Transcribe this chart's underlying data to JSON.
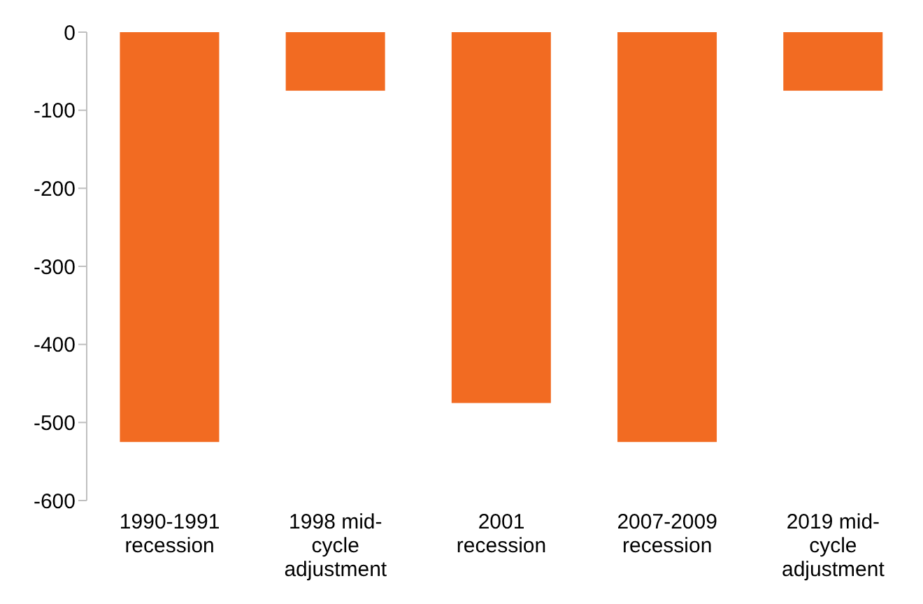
{
  "chart_data": {
    "type": "bar",
    "categories": [
      "1990-1991 recession",
      "1998 mid-cycle adjustment",
      "2001 recession",
      "2007-2009 recession",
      "2019 mid-cycle adjustment"
    ],
    "values": [
      -525,
      -75,
      -475,
      -525,
      -75
    ],
    "color": "#f26b22",
    "ylim": [
      -600,
      0
    ],
    "yticks": [
      -600,
      -500,
      -400,
      -300,
      -200,
      -100,
      0
    ],
    "grid": false,
    "legend": false
  }
}
